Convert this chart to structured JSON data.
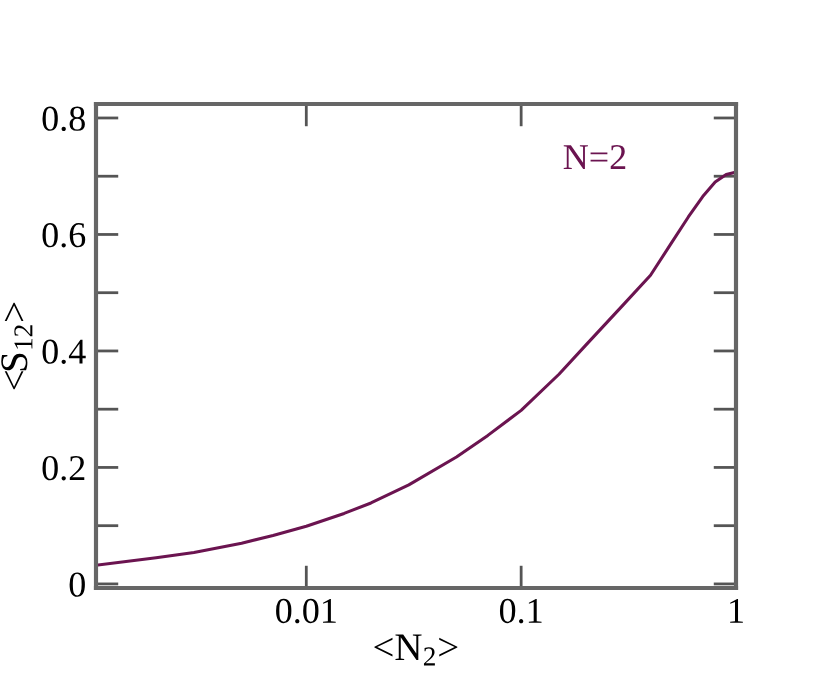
{
  "chart_data": {
    "type": "line",
    "xlabel": "<N$_{2}$>",
    "ylabel": "<S$_{12}$>",
    "log": "x",
    "xlim": [
      0.00105,
      1
    ],
    "ylim": [
      -0.007,
      0.824
    ],
    "xticks": [
      {
        "value": 0.01,
        "label": "0.01"
      },
      {
        "value": 0.1,
        "label": "0.1"
      },
      1
    ],
    "yticks": [
      0,
      {
        "value": 0.1,
        "label": null
      },
      {
        "value": 0.2,
        "label": "0.2"
      },
      {
        "value": 0.3,
        "label": null
      },
      {
        "value": 0.4,
        "label": "0.4"
      },
      {
        "value": 0.5,
        "label": null
      },
      {
        "value": 0.6,
        "label": "0.6"
      },
      {
        "value": 0.7,
        "label": null
      },
      {
        "value": 0.8,
        "label": "0.8"
      }
    ],
    "grid": false,
    "marker": "none",
    "line_style": "solid",
    "annotations": [
      "N=2"
    ],
    "series": [
      {
        "color": "#6b1450",
        "x": [
          0.00105,
          0.002,
          0.003,
          0.005,
          0.007,
          0.01,
          0.015,
          0.02,
          0.03,
          0.05,
          0.07,
          0.1,
          0.15,
          0.2,
          0.3,
          0.4,
          0.5,
          0.6,
          0.7,
          0.8,
          0.9,
          1
        ],
        "values": [
          0.032,
          0.045,
          0.054,
          0.07,
          0.083,
          0.099,
          0.121,
          0.139,
          0.17,
          0.218,
          0.255,
          0.298,
          0.36,
          0.41,
          0.48,
          0.53,
          0.585,
          0.63,
          0.665,
          0.69,
          0.703,
          0.707
        ]
      }
    ]
  }
}
